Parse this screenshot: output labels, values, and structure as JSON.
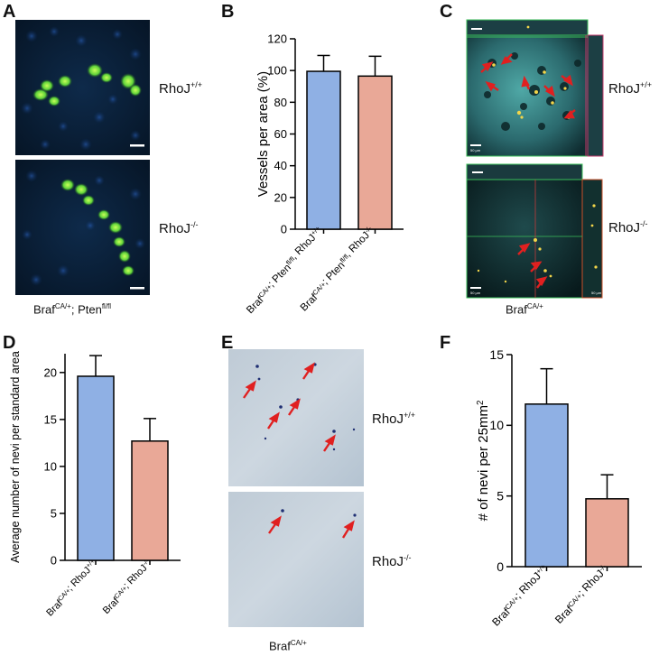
{
  "panels": {
    "A": {
      "letter": "A",
      "top_label": {
        "base": "RhoJ",
        "sup": "+/+"
      },
      "bottom_label": {
        "base": "RhoJ",
        "sup": "-/-"
      },
      "caption": {
        "part1": "Braf",
        "sup1": "CA/+",
        "part2": "; Pten",
        "sup2": "fl/fl"
      }
    },
    "B": {
      "letter": "B"
    },
    "C": {
      "letter": "C",
      "top_label": {
        "base": "RhoJ",
        "sup": "+/+"
      },
      "bottom_label": {
        "base": "RhoJ",
        "sup": "-/-"
      },
      "caption": {
        "base": "Braf",
        "sup": "CA/+"
      },
      "scale_text": "50 µm"
    },
    "D": {
      "letter": "D"
    },
    "E": {
      "letter": "E",
      "top_label": {
        "base": "RhoJ",
        "sup": "+/+"
      },
      "bottom_label": {
        "base": "RhoJ",
        "sup": "-/-"
      },
      "caption": {
        "base": "Braf",
        "sup": "CA/+"
      }
    },
    "F": {
      "letter": "F"
    }
  },
  "chart_data": [
    {
      "panel": "B",
      "type": "bar",
      "ylabel": "Vessels per area (%)",
      "ylim": [
        0,
        120
      ],
      "yticks": [
        0,
        20,
        40,
        60,
        80,
        100,
        120
      ],
      "categories": [
        {
          "t1": "Braf",
          "s1": "CA/+",
          "t2": "; Pten",
          "s2": "fl/fl",
          "t3": ", RhoJ",
          "s3": "+/+"
        },
        {
          "t1": "Braf",
          "s1": "CA/+",
          "t2": "; Pten",
          "s2": "fl/fl",
          "t3": ", RhoJ",
          "s3": "-/-"
        }
      ],
      "values": [
        99.5,
        96.5
      ],
      "errors": [
        10,
        12.5
      ],
      "colors": [
        "#8fb0e4",
        "#e9a897"
      ]
    },
    {
      "panel": "D",
      "type": "bar",
      "ylabel": "Average number of nevi per standard area",
      "ylim": [
        0,
        22
      ],
      "yticks": [
        0,
        5,
        10,
        15,
        20
      ],
      "categories": [
        {
          "t1": "Braf",
          "s1": "CA/+",
          "t2": "; RhoJ",
          "s2": "+/+"
        },
        {
          "t1": "Braf",
          "s1": "CA/+",
          "t2": "; RhoJ",
          "s2": "-/-"
        }
      ],
      "values": [
        19.6,
        12.7
      ],
      "errors": [
        2.2,
        2.4
      ],
      "colors": [
        "#8fb0e4",
        "#e9a897"
      ]
    },
    {
      "panel": "F",
      "type": "bar",
      "ylabel": "# of nevi per 25mm",
      "ylabel_sup": "2",
      "ylim": [
        0,
        15
      ],
      "yticks": [
        0,
        5,
        10,
        15
      ],
      "categories": [
        {
          "t1": "Braf",
          "s1": "CA/+",
          "t2": "; RhoJ",
          "s2": "+/+"
        },
        {
          "t1": "Braf",
          "s1": "CA/+",
          "t2": "; RhoJ",
          "s2": "-/-"
        }
      ],
      "values": [
        11.5,
        4.8
      ],
      "errors": [
        2.5,
        1.7
      ],
      "colors": [
        "#8fb0e4",
        "#e9a897"
      ]
    }
  ]
}
